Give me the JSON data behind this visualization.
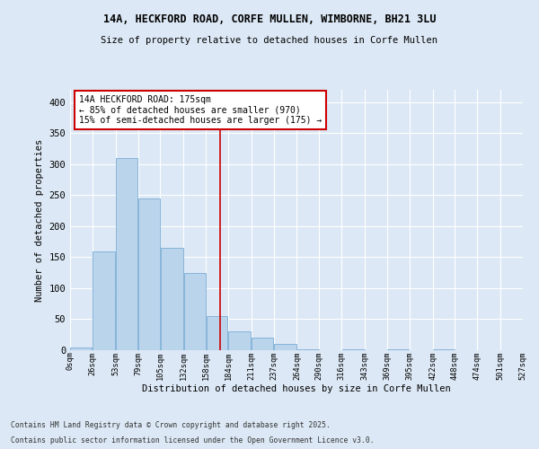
{
  "title": "14A, HECKFORD ROAD, CORFE MULLEN, WIMBORNE, BH21 3LU",
  "subtitle": "Size of property relative to detached houses in Corfe Mullen",
  "xlabel": "Distribution of detached houses by size in Corfe Mullen",
  "ylabel": "Number of detached properties",
  "footnote1": "Contains HM Land Registry data © Crown copyright and database right 2025.",
  "footnote2": "Contains public sector information licensed under the Open Government Licence v3.0.",
  "property_size": 175,
  "annotation_line1": "14A HECKFORD ROAD: 175sqm",
  "annotation_line2": "← 85% of detached houses are smaller (970)",
  "annotation_line3": "15% of semi-detached houses are larger (175) →",
  "bar_color": "#bad4ec",
  "bar_edge_color": "#7aadd4",
  "vline_color": "#cc0000",
  "annotation_box_color": "#cc0000",
  "background_color": "#dce8f5",
  "bins": [
    0,
    26,
    53,
    79,
    105,
    132,
    158,
    184,
    211,
    237,
    264,
    290,
    316,
    343,
    369,
    395,
    422,
    448,
    474,
    501,
    527
  ],
  "bin_labels": [
    "0sqm",
    "26sqm",
    "53sqm",
    "79sqm",
    "105sqm",
    "132sqm",
    "158sqm",
    "184sqm",
    "211sqm",
    "237sqm",
    "264sqm",
    "290sqm",
    "316sqm",
    "343sqm",
    "369sqm",
    "395sqm",
    "422sqm",
    "448sqm",
    "474sqm",
    "501sqm",
    "527sqm"
  ],
  "counts": [
    5,
    160,
    310,
    245,
    165,
    125,
    55,
    30,
    20,
    10,
    2,
    0,
    1,
    0,
    2,
    0,
    1,
    0,
    0,
    0
  ],
  "ylim": [
    0,
    420
  ],
  "yticks": [
    0,
    50,
    100,
    150,
    200,
    250,
    300,
    350,
    400
  ]
}
